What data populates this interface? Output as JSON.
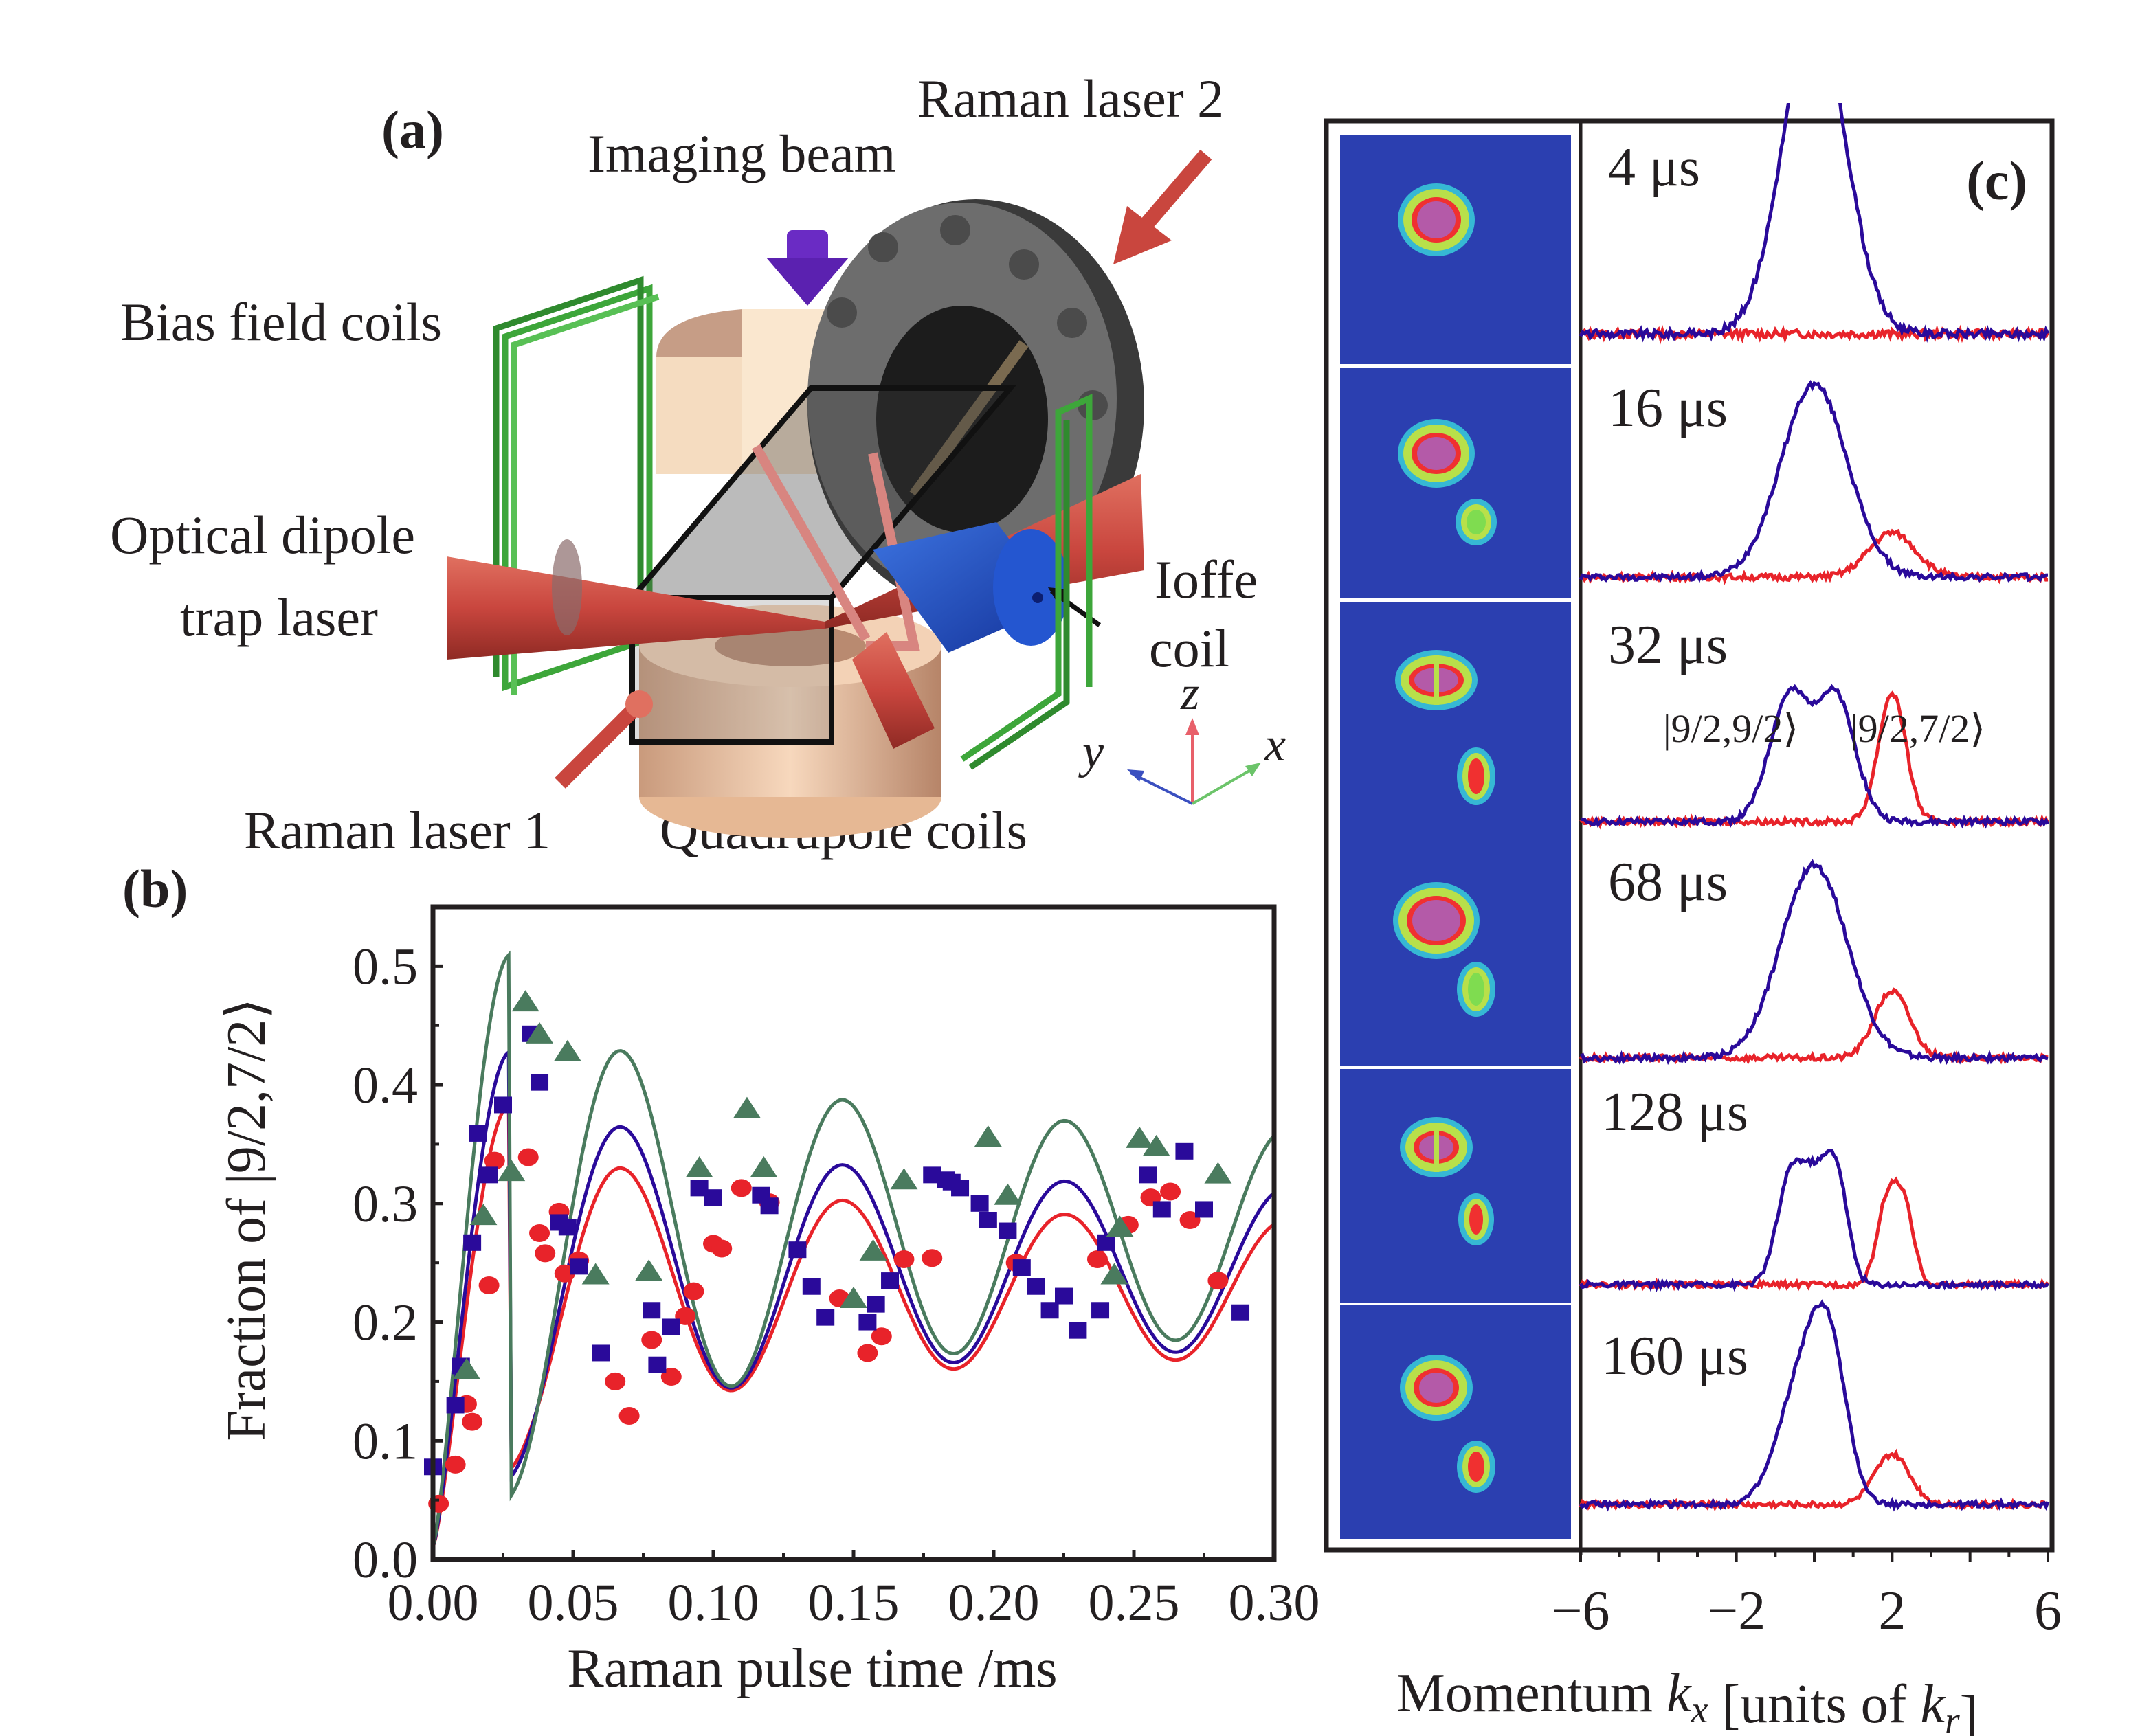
{
  "figure": {
    "panel_a": {
      "tag": "(a)",
      "labels": {
        "raman_laser_2": "Raman laser 2",
        "imaging_beam": "Imaging beam",
        "bias_field_coils": "Bias field coils",
        "optical_dipole_1": "Optical dipole",
        "optical_dipole_2": "trap laser",
        "ioffe_1": "Ioffe",
        "ioffe_2": "coil",
        "raman_laser_1": "Raman laser 1",
        "quadrupole_coils": "Quadrupole coils",
        "axis_z": "z",
        "axis_y": "y",
        "axis_x": "x"
      },
      "colors": {
        "coil_green": "#3da63a",
        "laser_red": "#c9463e",
        "imaging_purple": "#6a2bc4",
        "ioffe_blue": "#1f4fc8",
        "quadrupole_tan": "#f3c9a6",
        "flange_gray": "#6d6d6d"
      }
    },
    "panel_b": {
      "tag": "(b)"
    },
    "panel_c": {
      "tag": "(c)",
      "rows": [
        {
          "label": "4 μs"
        },
        {
          "label": "16 μs"
        },
        {
          "label": "32 μs"
        },
        {
          "label": "68 μs"
        },
        {
          "label": "128 μs"
        },
        {
          "label": "160 μs"
        }
      ],
      "state_label_left": "|9/2,9/2⟩",
      "state_label_right": "|9/2,7/2⟩",
      "colors": {
        "state_9_2": "#2a0a9a",
        "state_7_2": "#e8232a",
        "image_bg": "#2b3fb0"
      }
    }
  },
  "chart_data": [
    {
      "type": "scatter",
      "title": "",
      "xlabel": "Raman pulse time /ms",
      "ylabel": "Fraction of |9/2,7/2⟩",
      "xlim": [
        0.0,
        0.3
      ],
      "ylim": [
        0.0,
        0.55
      ],
      "xticks": [
        "0.00",
        "0.05",
        "0.10",
        "0.15",
        "0.20",
        "0.25",
        "0.30"
      ],
      "yticks": [
        "0.0",
        "0.1",
        "0.2",
        "0.3",
        "0.4",
        "0.5"
      ],
      "grid": false,
      "series": [
        {
          "name": "red circles",
          "marker": "circle",
          "color": "#e8232a",
          "points": [
            [
              0.002,
              0.047
            ],
            [
              0.008,
              0.08
            ],
            [
              0.012,
              0.131
            ],
            [
              0.014,
              0.116
            ],
            [
              0.02,
              0.231
            ],
            [
              0.022,
              0.336
            ],
            [
              0.034,
              0.339
            ],
            [
              0.038,
              0.275
            ],
            [
              0.04,
              0.258
            ],
            [
              0.045,
              0.293
            ],
            [
              0.047,
              0.241
            ],
            [
              0.052,
              0.252
            ],
            [
              0.065,
              0.15
            ],
            [
              0.07,
              0.121
            ],
            [
              0.078,
              0.185
            ],
            [
              0.085,
              0.154
            ],
            [
              0.09,
              0.205
            ],
            [
              0.093,
              0.226
            ],
            [
              0.1,
              0.266
            ],
            [
              0.103,
              0.262
            ],
            [
              0.11,
              0.313
            ],
            [
              0.12,
              0.301
            ],
            [
              0.145,
              0.22
            ],
            [
              0.155,
              0.174
            ],
            [
              0.16,
              0.188
            ],
            [
              0.168,
              0.253
            ],
            [
              0.178,
              0.254
            ],
            [
              0.208,
              0.25
            ],
            [
              0.237,
              0.253
            ],
            [
              0.248,
              0.282
            ],
            [
              0.256,
              0.305
            ],
            [
              0.263,
              0.31
            ],
            [
              0.27,
              0.286
            ],
            [
              0.28,
              0.235
            ]
          ]
        },
        {
          "name": "blue squares",
          "marker": "square",
          "color": "#2a0a9a",
          "points": [
            [
              0.0,
              0.078
            ],
            [
              0.008,
              0.13
            ],
            [
              0.01,
              0.163
            ],
            [
              0.014,
              0.267
            ],
            [
              0.016,
              0.359
            ],
            [
              0.02,
              0.324
            ],
            [
              0.025,
              0.383
            ],
            [
              0.035,
              0.443
            ],
            [
              0.038,
              0.402
            ],
            [
              0.045,
              0.284
            ],
            [
              0.048,
              0.28
            ],
            [
              0.052,
              0.247
            ],
            [
              0.06,
              0.174
            ],
            [
              0.078,
              0.21
            ],
            [
              0.08,
              0.164
            ],
            [
              0.085,
              0.196
            ],
            [
              0.095,
              0.313
            ],
            [
              0.1,
              0.305
            ],
            [
              0.117,
              0.307
            ],
            [
              0.12,
              0.298
            ],
            [
              0.13,
              0.261
            ],
            [
              0.135,
              0.23
            ],
            [
              0.14,
              0.204
            ],
            [
              0.155,
              0.2
            ],
            [
              0.158,
              0.215
            ],
            [
              0.163,
              0.235
            ],
            [
              0.178,
              0.324
            ],
            [
              0.183,
              0.32
            ],
            [
              0.185,
              0.318
            ],
            [
              0.188,
              0.313
            ],
            [
              0.195,
              0.3
            ],
            [
              0.198,
              0.286
            ],
            [
              0.205,
              0.277
            ],
            [
              0.21,
              0.246
            ],
            [
              0.215,
              0.23
            ],
            [
              0.22,
              0.21
            ],
            [
              0.225,
              0.222
            ],
            [
              0.23,
              0.193
            ],
            [
              0.238,
              0.21
            ],
            [
              0.24,
              0.267
            ],
            [
              0.255,
              0.324
            ],
            [
              0.26,
              0.295
            ],
            [
              0.268,
              0.344
            ],
            [
              0.275,
              0.295
            ],
            [
              0.288,
              0.208
            ]
          ]
        },
        {
          "name": "green triangles",
          "marker": "triangle",
          "color": "#4a7b5e",
          "points": [
            [
              0.012,
              0.16
            ],
            [
              0.018,
              0.29
            ],
            [
              0.028,
              0.327
            ],
            [
              0.033,
              0.47
            ],
            [
              0.038,
              0.443
            ],
            [
              0.048,
              0.428
            ],
            [
              0.058,
              0.24
            ],
            [
              0.077,
              0.243
            ],
            [
              0.112,
              0.38
            ],
            [
              0.118,
              0.33
            ],
            [
              0.095,
              0.33
            ],
            [
              0.15,
              0.22
            ],
            [
              0.157,
              0.26
            ],
            [
              0.168,
              0.32
            ],
            [
              0.198,
              0.356
            ],
            [
              0.205,
              0.307
            ],
            [
              0.245,
              0.28
            ],
            [
              0.252,
              0.355
            ],
            [
              0.258,
              0.348
            ],
            [
              0.28,
              0.325
            ],
            [
              0.243,
              0.24
            ]
          ]
        }
      ],
      "fits": [
        {
          "name": "red fit",
          "color": "#e8232a",
          "amp0": 0.38,
          "mean": 0.228,
          "decay": 0.45,
          "period": 0.079,
          "peak1": 0.384
        },
        {
          "name": "blue fit",
          "color": "#2a0a9a",
          "amp0": 0.43,
          "mean": 0.245,
          "decay": 0.42,
          "period": 0.079,
          "peak1": 0.428
        },
        {
          "name": "green fit",
          "color": "#4a7b5e",
          "amp0": 0.51,
          "mean": 0.275,
          "decay": 0.4,
          "period": 0.079,
          "peak1": 0.51
        }
      ]
    },
    {
      "type": "line",
      "title": "",
      "xlabel": "Momentum k_x [units of k_r]",
      "xlabel_parts": {
        "pre": "Momentum ",
        "k": "k",
        "sub_x": "x",
        "mid": " [units of ",
        "sub_r": "r",
        "post": "]"
      },
      "xlim": [
        -6,
        6
      ],
      "xticks": [
        "−6",
        "−2",
        "2",
        "6"
      ],
      "grid": false,
      "rows": [
        {
          "time": "4 μs",
          "blue": [
            {
              "c": 0.0,
              "w": 0.8,
              "h": 1.0
            }
          ],
          "red": []
        },
        {
          "time": "16 μs",
          "blue": [
            {
              "c": 0.0,
              "w": 0.85,
              "h": 0.78
            }
          ],
          "red": [
            {
              "c": 2.0,
              "w": 0.6,
              "h": 0.18
            }
          ]
        },
        {
          "time": "32 μs",
          "blue": [
            {
              "c": -0.65,
              "w": 0.5,
              "h": 0.5
            },
            {
              "c": 0.55,
              "w": 0.5,
              "h": 0.5
            }
          ],
          "red": [
            {
              "c": 2.0,
              "w": 0.35,
              "h": 0.52
            }
          ]
        },
        {
          "time": "68 μs",
          "blue": [
            {
              "c": 0.0,
              "w": 0.85,
              "h": 0.78
            }
          ],
          "red": [
            {
              "c": 2.0,
              "w": 0.45,
              "h": 0.27
            }
          ]
        },
        {
          "time": "128 μs",
          "blue": [
            {
              "c": -0.6,
              "w": 0.35,
              "h": 0.48
            },
            {
              "c": 0.0,
              "w": 0.3,
              "h": 0.34
            },
            {
              "c": 0.55,
              "w": 0.3,
              "h": 0.5
            }
          ],
          "red": [
            {
              "c": 1.85,
              "w": 0.25,
              "h": 0.34
            },
            {
              "c": 2.3,
              "w": 0.25,
              "h": 0.34
            }
          ]
        },
        {
          "time": "160 μs",
          "blue": [
            {
              "c": -0.3,
              "w": 0.6,
              "h": 0.55
            },
            {
              "c": 0.4,
              "w": 0.45,
              "h": 0.55
            }
          ],
          "red": [
            {
              "c": 2.0,
              "w": 0.45,
              "h": 0.22
            }
          ]
        }
      ]
    }
  ]
}
